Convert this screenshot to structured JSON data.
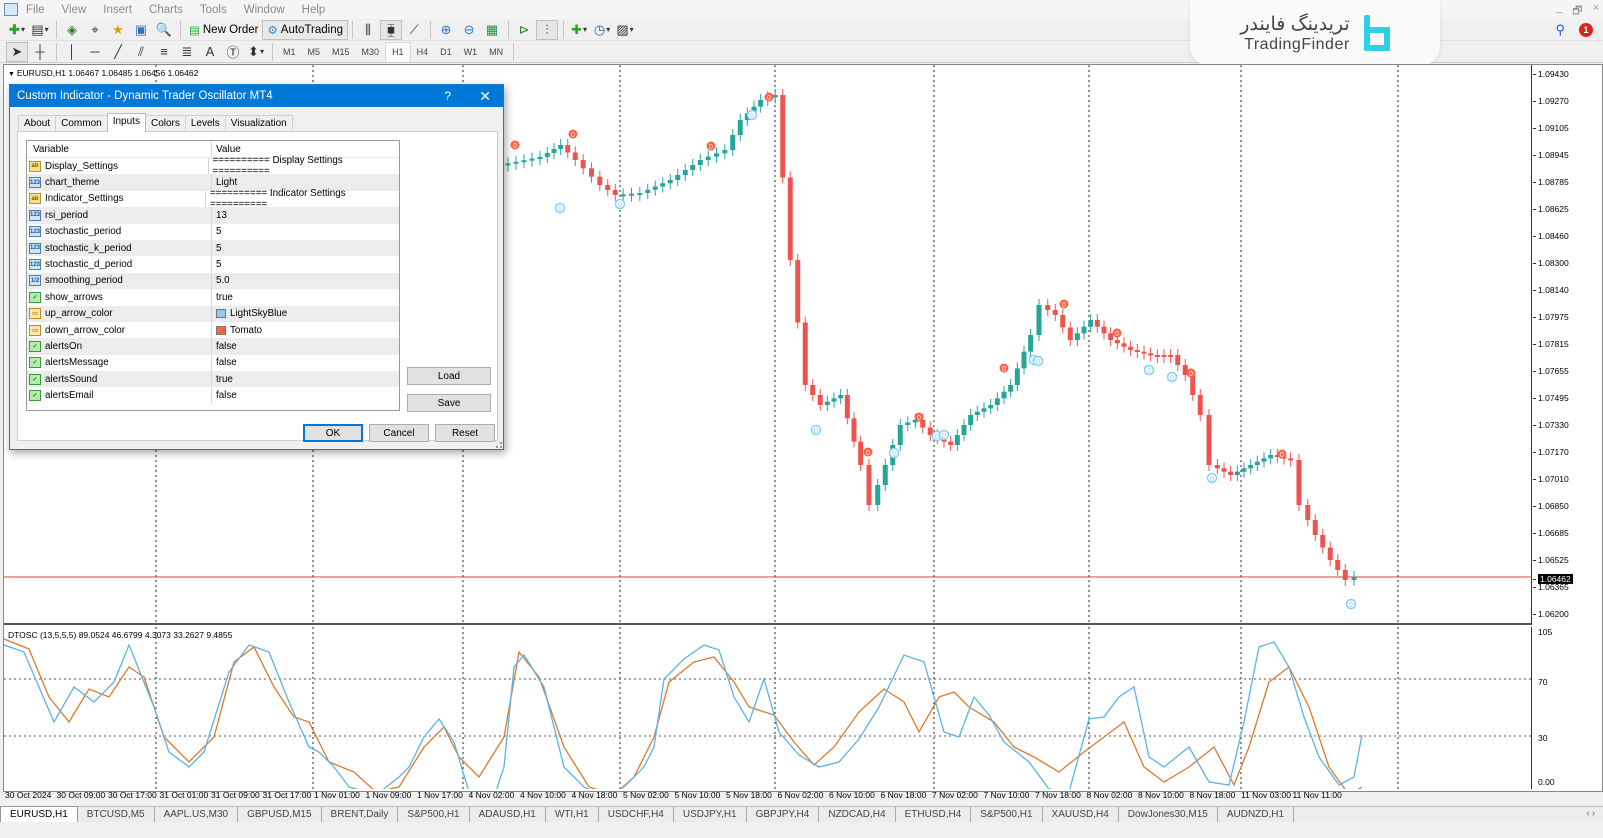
{
  "menubar": {
    "items": [
      "File",
      "View",
      "Insert",
      "Charts",
      "Tools",
      "Window",
      "Help"
    ]
  },
  "window_controls": [
    "_",
    "🗗",
    "×"
  ],
  "toolbar": {
    "new_order_label": "New Order",
    "autotrading_label": "AutoTrading",
    "timeframes": [
      "M1",
      "M5",
      "M15",
      "M30",
      "H1",
      "H4",
      "D1",
      "W1",
      "MN"
    ],
    "active_timeframe": "H1"
  },
  "brand": {
    "persian": "تریدینگ فایندر",
    "english": "TradingFinder",
    "accent": "#2ed0e8"
  },
  "notifications": {
    "count": "1"
  },
  "chart": {
    "title": "EURUSD,H1  1.06467 1.06485 1.06456 1.06462",
    "current_price": "1.06462",
    "price_axis": [
      "1.09430",
      "1.09270",
      "1.09105",
      "1.08945",
      "1.08785",
      "1.08625",
      "1.08460",
      "1.08300",
      "1.08140",
      "1.07975",
      "1.07815",
      "1.07655",
      "1.07495",
      "1.07330",
      "1.07170",
      "1.07010",
      "1.06850",
      "1.06685",
      "1.06525",
      "1.06365",
      "1.06200"
    ],
    "time_axis": [
      "30 Oct 2024",
      "30 Oct 09:00",
      "30 Oct 17:00",
      "31 Oct 01:00",
      "31 Oct 09:00",
      "31 Oct 17:00",
      "1 Nov 01:00",
      "1 Nov 09:00",
      "1 Nov 17:00",
      "4 Nov 02:00",
      "4 Nov 10:00",
      "4 Nov 18:00",
      "5 Nov 02:00",
      "5 Nov 10:00",
      "5 Nov 18:00",
      "6 Nov 02:00",
      "6 Nov 10:00",
      "6 Nov 18:00",
      "7 Nov 02:00",
      "7 Nov 10:00",
      "7 Nov 18:00",
      "8 Nov 02:00",
      "8 Nov 10:00",
      "8 Nov 18:00",
      "11 Nov 03:00",
      "11 Nov 11:00"
    ],
    "bull_color": "#26a69a",
    "bear_color": "#ef5350",
    "up_marker_color": "#87cefa",
    "down_marker_color": "#ff6347",
    "marker_label": "0"
  },
  "oscillator": {
    "label": "DTOSC (13,5,5,5) 89.0524 46.6799 4.3073 33.2627 9.4855",
    "axis": [
      "105",
      "70",
      "30",
      "0.00"
    ],
    "fast_color": "#5ab4e5",
    "slow_color": "#e0792a"
  },
  "symbol_tabs": [
    "EURUSD,H1",
    "BTCUSD,M5",
    "AAPL.US,M30",
    "GBPUSD,M15",
    "BRENT,Daily",
    "S&P500,H1",
    "ADAUSD,H1",
    "WTI,H1",
    "USDCHF,H4",
    "USDJPY,H1",
    "GBPJPY,H4",
    "NZDCAD,H4",
    "ETHUSD,H4",
    "S&P500,H1",
    "XAUUSD,H4",
    "DowJones30,M15",
    "AUDNZD,H1"
  ],
  "active_symbol_tab": "EURUSD,H1",
  "dialog": {
    "title": "Custom Indicator - Dynamic Trader Oscillator MT4",
    "help": "?",
    "close": "✕",
    "tabs": [
      "About",
      "Common",
      "Inputs",
      "Colors",
      "Levels",
      "Visualization"
    ],
    "active_tab": "Inputs",
    "columns": {
      "variable": "Variable",
      "value": "Value"
    },
    "inputs": [
      {
        "type": "ab",
        "name": "Display_Settings",
        "value": "========== Display Settings =========="
      },
      {
        "type": "n123",
        "name": "chart_theme",
        "value": "Light"
      },
      {
        "type": "ab",
        "name": "Indicator_Settings",
        "value": "========== Indicator Settings =========="
      },
      {
        "type": "n123",
        "name": "rsi_period",
        "value": "13"
      },
      {
        "type": "n123",
        "name": "stochastic_period",
        "value": "5"
      },
      {
        "type": "n123",
        "name": "stochastic_k_period",
        "value": "5"
      },
      {
        "type": "n123",
        "name": "stochastic_d_period",
        "value": "5"
      },
      {
        "type": "dbl",
        "name": "smoothing_period",
        "value": "5.0"
      },
      {
        "type": "bool",
        "name": "show_arrows",
        "value": "true"
      },
      {
        "type": "clr",
        "name": "up_arrow_color",
        "value": "LightSkyBlue",
        "swatch": "#87cefa"
      },
      {
        "type": "clr",
        "name": "down_arrow_color",
        "value": "Tomato",
        "swatch": "#ff6347"
      },
      {
        "type": "bool",
        "name": "alertsOn",
        "value": "false"
      },
      {
        "type": "bool",
        "name": "alertsMessage",
        "value": "false"
      },
      {
        "type": "bool",
        "name": "alertsSound",
        "value": "true"
      },
      {
        "type": "bool",
        "name": "alertsEmail",
        "value": "false"
      }
    ],
    "buttons": {
      "load": "Load",
      "save": "Save",
      "ok": "OK",
      "cancel": "Cancel",
      "reset": "Reset"
    }
  }
}
